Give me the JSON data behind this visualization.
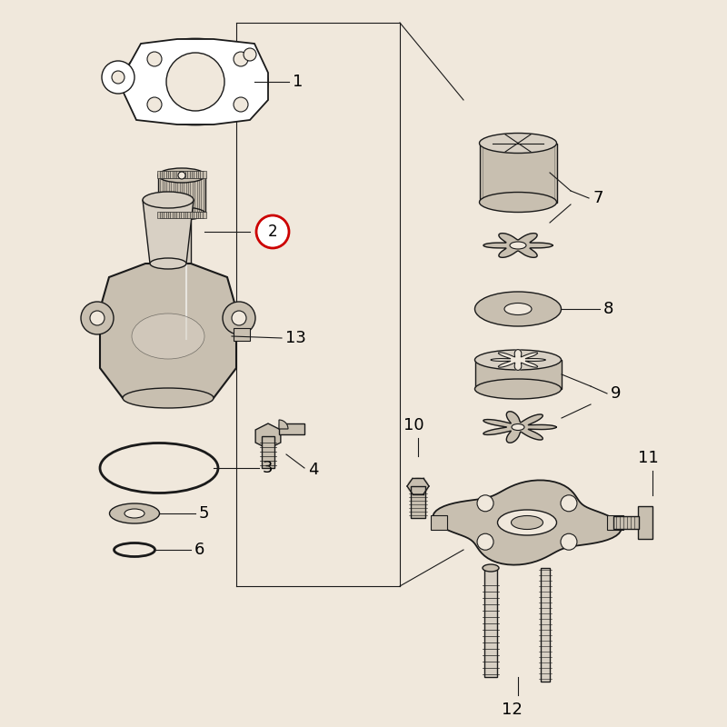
{
  "bg_color": "#c8a882",
  "inner_bg": "#f0e8dc",
  "line_color": "#1a1a1a",
  "part_fill": "#c8bfb0",
  "part_fill_light": "#d8d0c4",
  "part_edge": "#1a1a1a",
  "highlight_color": "#cc0000",
  "lw": 1.0,
  "figsize": [
    8.0,
    8.0
  ],
  "dpi": 100
}
